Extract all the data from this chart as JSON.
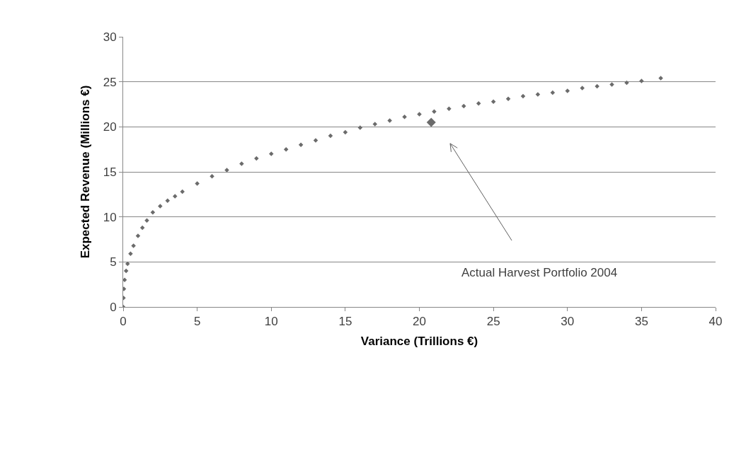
{
  "chart_data": {
    "type": "scatter",
    "xlabel": "Variance (Trillions €)",
    "ylabel": "Expected Revenue (Millions €)",
    "series": [
      {
        "color": "#6b6b6b",
        "marker": "diamond",
        "x": [
          0,
          0.02,
          0.05,
          0.1,
          0.2,
          0.3,
          0.5,
          0.7,
          1.0,
          1.3,
          1.6,
          2.0,
          2.5,
          3,
          3.5,
          4,
          5,
          6,
          7,
          8,
          9,
          10,
          11,
          12,
          13,
          14,
          15,
          16,
          17,
          18,
          19,
          20,
          21,
          22,
          23,
          24,
          25,
          26,
          27,
          28,
          29,
          30,
          31,
          32,
          33,
          34,
          35,
          36.3
        ],
        "values": [
          0,
          1,
          2,
          3,
          4,
          4.8,
          5.9,
          6.8,
          7.9,
          8.8,
          9.6,
          10.5,
          11.2,
          11.8,
          12.3,
          12.8,
          13.7,
          14.5,
          15.2,
          15.9,
          16.5,
          17.0,
          17.5,
          18.0,
          18.5,
          19.0,
          19.4,
          19.9,
          20.3,
          20.7,
          21.1,
          21.4,
          21.7,
          22.0,
          22.3,
          22.6,
          22.8,
          23.1,
          23.4,
          23.6,
          23.8,
          24.0,
          24.3,
          24.5,
          24.7,
          24.9,
          25.1,
          25.4
        ]
      },
      {
        "color": "#6b6b6b",
        "marker": "diamond",
        "x": [
          20.8
        ],
        "values": [
          20.5
        ]
      }
    ],
    "annotations": [
      "Actual Harvest Portfolio 2004"
    ],
    "xlim": [
      0,
      40
    ],
    "xticks": [
      0,
      5,
      10,
      15,
      20,
      25,
      30,
      35,
      40
    ],
    "ylim": [
      0,
      30
    ],
    "yticks": [
      0,
      5,
      10,
      15,
      20,
      25,
      30
    ],
    "grid": "y"
  }
}
